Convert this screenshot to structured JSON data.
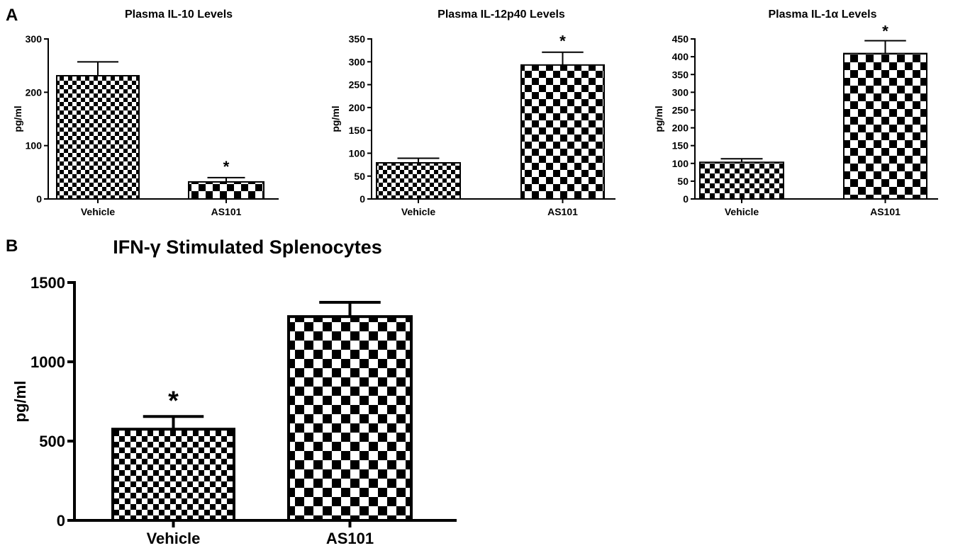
{
  "panel_labels": {
    "a": "A",
    "b": "B"
  },
  "chart_data": [
    {
      "type": "bar",
      "title": "Plasma IL-10 Levels",
      "ylabel": "pg/ml",
      "xlabel": "",
      "ylim": [
        0,
        300
      ],
      "yticks": [
        0,
        100,
        200,
        300
      ],
      "categories": [
        "Vehicle",
        "AS101"
      ],
      "values": [
        231,
        32
      ],
      "errors": [
        26,
        8
      ],
      "significance": [
        "",
        "*"
      ]
    },
    {
      "type": "bar",
      "title": "Plasma IL-12p40 Levels",
      "ylabel": "pg/ml",
      "xlabel": "",
      "ylim": [
        0,
        350
      ],
      "yticks": [
        0,
        50,
        100,
        150,
        200,
        250,
        300,
        350
      ],
      "categories": [
        "Vehicle",
        "AS101"
      ],
      "values": [
        79,
        293
      ],
      "errors": [
        10,
        28
      ],
      "significance": [
        "",
        "*"
      ]
    },
    {
      "type": "bar",
      "title": "Plasma IL-1α Levels",
      "ylabel": "pg/ml",
      "xlabel": "",
      "ylim": [
        0,
        450
      ],
      "yticks": [
        0,
        50,
        100,
        150,
        200,
        250,
        300,
        350,
        400,
        450
      ],
      "categories": [
        "Vehicle",
        "AS101"
      ],
      "values": [
        103,
        409
      ],
      "errors": [
        10,
        36
      ],
      "significance": [
        "",
        "*"
      ]
    },
    {
      "type": "bar",
      "title": "IFN-γ Stimulated Splenocytes",
      "ylabel": "pg/ml",
      "xlabel": "",
      "ylim": [
        0,
        1500
      ],
      "yticks": [
        0,
        500,
        1000,
        1500
      ],
      "categories": [
        "Vehicle",
        "AS101"
      ],
      "values": [
        575,
        1285
      ],
      "errors": [
        80,
        90
      ],
      "significance": [
        "*",
        ""
      ]
    }
  ]
}
